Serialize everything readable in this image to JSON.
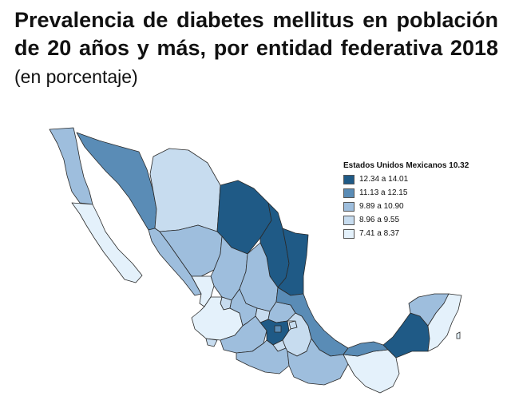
{
  "title": {
    "main": "Prevalencia de diabetes mellitus en población de 20 años y más, por entidad federativa 2018",
    "sub": "(en porcentaje)"
  },
  "legend": {
    "title": "Estados Unidos Mexicanos 10.32",
    "items": [
      {
        "label": "12.34 a 14.01",
        "color": "#1f5a86"
      },
      {
        "label": "11.13 a 12.15",
        "color": "#5a8cb6"
      },
      {
        "label": "9.89 a 10.90",
        "color": "#9ebedd"
      },
      {
        "label": "8.96 a 9.55",
        "color": "#c7dcef"
      },
      {
        "label": "7.41 a 8.37",
        "color": "#e4f1fb"
      }
    ]
  },
  "states": [
    {
      "name": "Baja California",
      "class": 2
    },
    {
      "name": "Baja California Sur",
      "class": 4
    },
    {
      "name": "Sonora",
      "class": 1
    },
    {
      "name": "Chihuahua",
      "class": 3
    },
    {
      "name": "Coahuila",
      "class": 0
    },
    {
      "name": "Nuevo León",
      "class": 0
    },
    {
      "name": "Tamaulipas",
      "class": 0
    },
    {
      "name": "Sinaloa",
      "class": 2
    },
    {
      "name": "Durango",
      "class": 2
    },
    {
      "name": "Zacatecas",
      "class": 2
    },
    {
      "name": "San Luis Potosí",
      "class": 2
    },
    {
      "name": "Nayarit",
      "class": 4
    },
    {
      "name": "Aguascalientes",
      "class": 3
    },
    {
      "name": "Jalisco",
      "class": 4
    },
    {
      "name": "Guanajuato",
      "class": 2
    },
    {
      "name": "Querétaro",
      "class": 3
    },
    {
      "name": "Hidalgo",
      "class": 2
    },
    {
      "name": "Colima",
      "class": 3
    },
    {
      "name": "Michoacán",
      "class": 2
    },
    {
      "name": "Estado de México",
      "class": 0
    },
    {
      "name": "Ciudad de México",
      "class": 1
    },
    {
      "name": "Tlaxcala",
      "class": 3
    },
    {
      "name": "Morelos",
      "class": 3
    },
    {
      "name": "Puebla",
      "class": 3
    },
    {
      "name": "Veracruz",
      "class": 1
    },
    {
      "name": "Guerrero",
      "class": 2
    },
    {
      "name": "Oaxaca",
      "class": 2
    },
    {
      "name": "Chiapas",
      "class": 4
    },
    {
      "name": "Tabasco",
      "class": 1
    },
    {
      "name": "Campeche",
      "class": 0
    },
    {
      "name": "Yucatán",
      "class": 2
    },
    {
      "name": "Quintana Roo",
      "class": 4
    }
  ]
}
